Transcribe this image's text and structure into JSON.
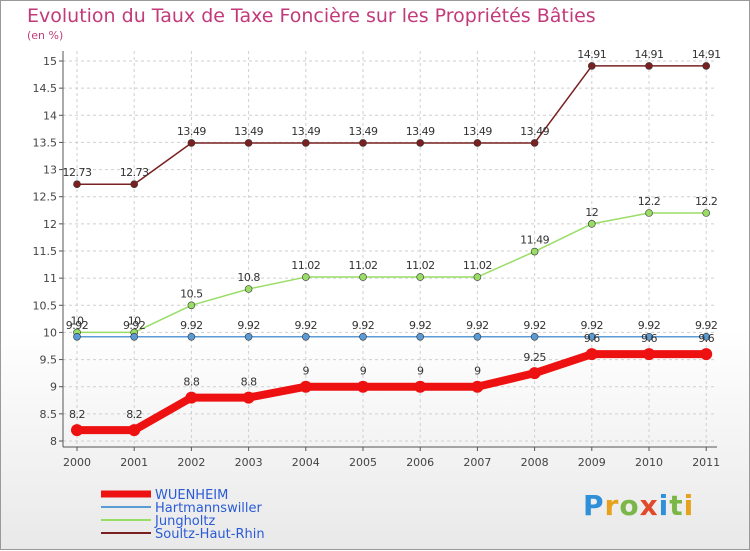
{
  "chart_data": {
    "type": "line",
    "title": "Evolution du Taux de Taxe Foncière sur les Propriétés Bâties",
    "unit_label": "(en %)",
    "xlabel": "",
    "ylabel": "(en %)",
    "ylim": [
      8,
      15
    ],
    "y_ticks": [
      "8",
      "8.5",
      "9",
      "9.5",
      "10",
      "10.5",
      "11",
      "11.5",
      "12",
      "12.5",
      "13",
      "13.5",
      "14",
      "14.5",
      "15"
    ],
    "categories": [
      "2000",
      "2001",
      "2002",
      "2003",
      "2004",
      "2005",
      "2006",
      "2007",
      "2008",
      "2009",
      "2010",
      "2011"
    ],
    "series": [
      {
        "name": "WUENHEIM",
        "color": "#ee1111",
        "values": [
          8.2,
          8.2,
          8.8,
          8.8,
          9,
          9,
          9,
          9,
          9.25,
          9.6,
          9.6,
          9.6
        ],
        "labels": [
          "8.2",
          "8.2",
          "8.8",
          "8.8",
          "9",
          "9",
          "9",
          "9",
          "9.25",
          "9.6",
          "9.6",
          "9.6"
        ]
      },
      {
        "name": "Hartmannswiller",
        "color": "#5b9bd5",
        "values": [
          9.92,
          9.92,
          9.92,
          9.92,
          9.92,
          9.92,
          9.92,
          9.92,
          9.92,
          9.92,
          9.92,
          9.92
        ],
        "labels": [
          "9.92",
          "9.92",
          "9.92",
          "9.92",
          "9.92",
          "9.92",
          "9.92",
          "9.92",
          "9.92",
          "9.92",
          "9.92",
          "9.92"
        ]
      },
      {
        "name": "Jungholtz",
        "color": "#99dd66",
        "values": [
          10,
          10,
          10.5,
          10.8,
          11.02,
          11.02,
          11.02,
          11.02,
          11.49,
          12,
          12.2,
          12.2
        ],
        "labels": [
          "10",
          "10",
          "10.5",
          "10.8",
          "11.02",
          "11.02",
          "11.02",
          "11.02",
          "11.49",
          "12",
          "12.2",
          "12.2"
        ]
      },
      {
        "name": "Soultz-Haut-Rhin",
        "color": "#7a2020",
        "values": [
          12.73,
          12.73,
          13.49,
          13.49,
          13.49,
          13.49,
          13.49,
          13.49,
          13.49,
          14.91,
          14.91,
          14.91
        ],
        "labels": [
          "12.73",
          "12.73",
          "13.49",
          "13.49",
          "13.49",
          "13.49",
          "13.49",
          "13.49",
          "13.49",
          "14.91",
          "14.91",
          "14.91"
        ]
      }
    ]
  },
  "brand": {
    "letters": [
      "P",
      "r",
      "o",
      "x",
      "i",
      "t",
      "i"
    ]
  }
}
